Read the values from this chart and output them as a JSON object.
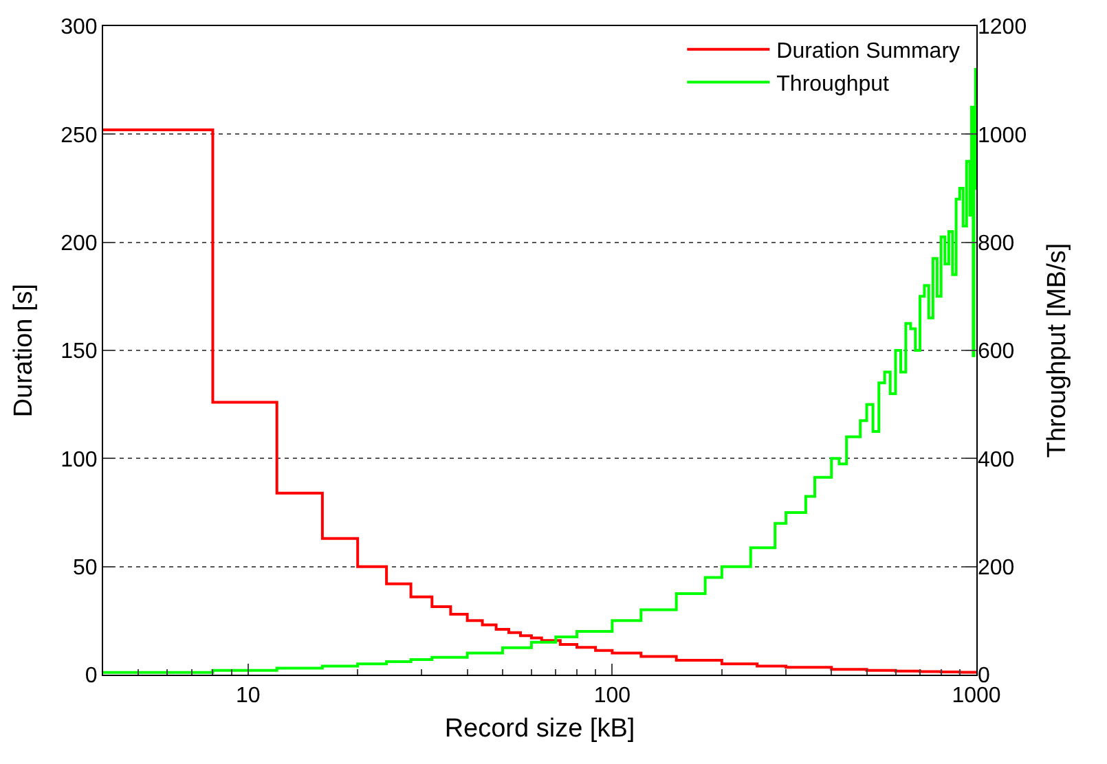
{
  "chart_data": {
    "type": "step",
    "xlabel": "Record size [kB]",
    "ylabel": "Duration [s]",
    "y2label": "Throughput [MB/s]",
    "log": "x",
    "xlim": [
      4,
      1000
    ],
    "xticks": [
      10,
      100,
      1000
    ],
    "ylim": [
      0,
      300
    ],
    "yticks": [
      0,
      50,
      100,
      150,
      200,
      250,
      300
    ],
    "y2lim": [
      0,
      1200
    ],
    "y2ticks": [
      0,
      200,
      400,
      600,
      800,
      1000,
      1200
    ],
    "grid": "y",
    "legend": "top right",
    "line_style": "solid",
    "marker": "none",
    "series": [
      {
        "name": "Duration Summary",
        "color": "#ff0000",
        "x": [
          4,
          8,
          12,
          16,
          20,
          24,
          28,
          32,
          36,
          40,
          44,
          48,
          52,
          56,
          60,
          64,
          72,
          80,
          90,
          100,
          120,
          150,
          200,
          250,
          300,
          400,
          500,
          600,
          700,
          800,
          900,
          1000
        ],
        "values": [
          252,
          126,
          84,
          63,
          50,
          42,
          36,
          31.5,
          28,
          25,
          23,
          21,
          19.5,
          18,
          17,
          15.8,
          14,
          12.6,
          11.2,
          10,
          8.4,
          6.7,
          5,
          4,
          3.4,
          2.5,
          2,
          1.7,
          1.4,
          1.3,
          1.1,
          1
        ]
      },
      {
        "name": "Throughput",
        "color": "#00ff00",
        "axis": "y2",
        "x": [
          4,
          8,
          12,
          16,
          20,
          24,
          28,
          32,
          40,
          50,
          60,
          70,
          80,
          100,
          120,
          150,
          180,
          200,
          240,
          280,
          300,
          340,
          360,
          400,
          420,
          440,
          480,
          500,
          520,
          540,
          560,
          580,
          600,
          620,
          640,
          660,
          680,
          700,
          720,
          740,
          760,
          780,
          800,
          820,
          840,
          860,
          880,
          900,
          920,
          940,
          960,
          970,
          980,
          985,
          990,
          995,
          1000
        ],
        "values": [
          4,
          8,
          12,
          16,
          20,
          24,
          28,
          32,
          40,
          50,
          60,
          70,
          80,
          100,
          120,
          150,
          180,
          200,
          235,
          280,
          300,
          330,
          365,
          400,
          390,
          440,
          470,
          500,
          450,
          540,
          560,
          520,
          600,
          560,
          650,
          640,
          600,
          700,
          720,
          660,
          770,
          700,
          810,
          760,
          820,
          740,
          880,
          900,
          830,
          950,
          850,
          1050,
          590,
          1000,
          900,
          1120,
          950
        ]
      }
    ]
  }
}
